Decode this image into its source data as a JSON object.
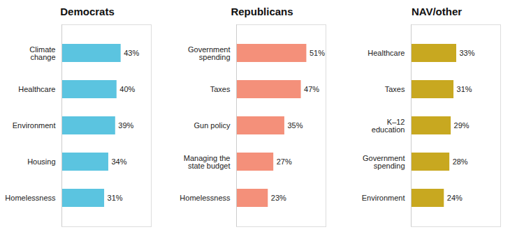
{
  "chart_data": [
    {
      "type": "bar",
      "orientation": "horizontal",
      "title": "Democrats",
      "categories": [
        "Climate\nchange",
        "Healthcare",
        "Environment",
        "Housing",
        "Homelessness"
      ],
      "values": [
        43,
        40,
        39,
        34,
        31
      ],
      "value_labels": [
        "43%",
        "40%",
        "39%",
        "34%",
        "31%"
      ],
      "color": "#5BC4E0",
      "data_labels": true,
      "xlim": [
        0,
        65
      ],
      "tick_labels": "y"
    },
    {
      "type": "bar",
      "orientation": "horizontal",
      "title": "Republicans",
      "categories": [
        "Government\nspending",
        "Taxes",
        "Gun policy",
        "Managing the\nstate budget",
        "Homelessness"
      ],
      "values": [
        51,
        47,
        35,
        27,
        23
      ],
      "value_labels": [
        "51%",
        "47%",
        "35%",
        "27%",
        "23%"
      ],
      "color": "#F4907A",
      "data_labels": true,
      "xlim": [
        0,
        65
      ],
      "tick_labels": "y"
    },
    {
      "type": "bar",
      "orientation": "horizontal",
      "title": "NAV/other",
      "categories": [
        "Healthcare",
        "Taxes",
        "K–12\neducation",
        "Government\nspending",
        "Environment"
      ],
      "values": [
        33,
        31,
        29,
        28,
        24
      ],
      "value_labels": [
        "33%",
        "31%",
        "29%",
        "28%",
        "24%"
      ],
      "color": "#C8A820",
      "data_labels": true,
      "xlim": [
        0,
        65
      ],
      "tick_labels": "y"
    }
  ]
}
